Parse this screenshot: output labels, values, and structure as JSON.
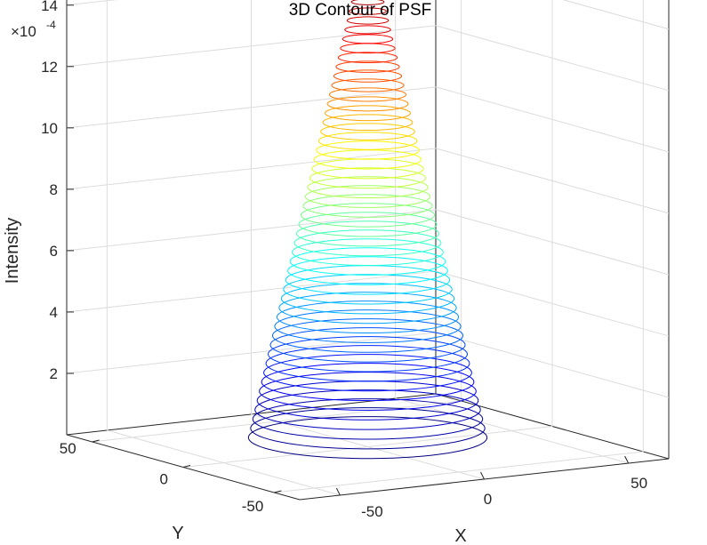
{
  "chart_data": {
    "type": "contour3",
    "title": "3D Contour of PSF",
    "xlabel": "X",
    "ylabel": "Y",
    "zlabel": "Intensity",
    "z_exponent_label": "×10",
    "z_exponent_power": "-4",
    "x_range": [
      -64,
      64
    ],
    "y_range": [
      -64,
      64
    ],
    "z_range": [
      0,
      15.5
    ],
    "x_ticks": [
      -50,
      0,
      50
    ],
    "y_ticks": [
      -50,
      0,
      50
    ],
    "z_ticks": [
      2,
      4,
      6,
      8,
      10,
      12,
      14
    ],
    "tick_labels": {
      "x": [
        "-50",
        "0",
        "50"
      ],
      "y": [
        "-50",
        "0",
        "50"
      ],
      "z": [
        "2",
        "4",
        "6",
        "8",
        "10",
        "12",
        "14"
      ]
    },
    "grid": true,
    "colormap": "jet",
    "contour_levels": 50,
    "contour_z_min": 0.3,
    "contour_z_max": 15.1,
    "contour_radius_at_min": 35,
    "contour_radius_at_max": 3.5,
    "units_note": "Intensity values shown in units of 1e-4"
  }
}
